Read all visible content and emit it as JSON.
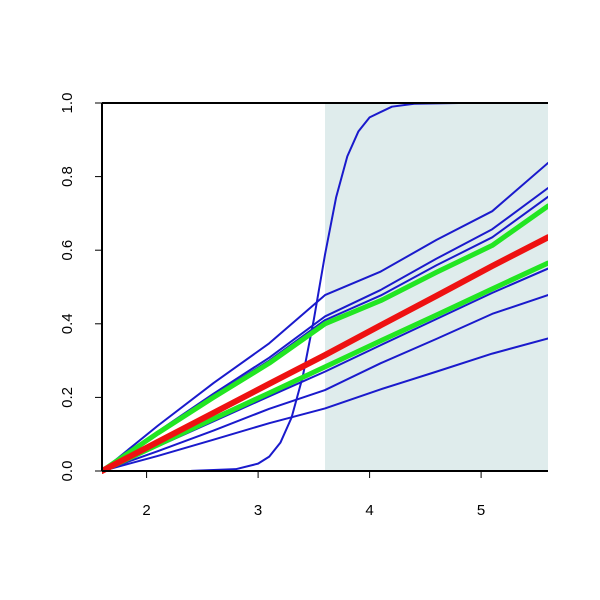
{
  "chart_data": {
    "type": "line",
    "x": [
      1.6,
      2.1,
      2.6,
      3.1,
      3.6,
      4.1,
      4.6,
      5.1,
      5.6
    ],
    "xlim": [
      1.6,
      5.6
    ],
    "xticks": [
      2,
      3,
      4,
      5
    ],
    "ylim": [
      0,
      1
    ],
    "yticks": [
      {
        "value": 0,
        "label": "0.0"
      },
      0.2,
      0.4,
      0.6,
      0.8,
      {
        "value": 1,
        "label": "1.0"
      }
    ],
    "shaded_xrange": [
      3.6,
      5.6
    ],
    "shade_color": "#dfecec",
    "series": [
      {
        "color": "#1a1acc",
        "values": [
          0,
          0.123,
          0.239,
          0.347,
          0.478,
          0.542,
          0.628,
          0.706,
          0.837
        ]
      },
      {
        "color": "#1a1acc",
        "values": [
          0,
          0.107,
          0.21,
          0.308,
          0.42,
          0.492,
          0.577,
          0.657,
          0.769
        ]
      },
      {
        "color": "#1a1acc",
        "values": [
          0,
          0.105,
          0.205,
          0.3,
          0.41,
          0.477,
          0.559,
          0.635,
          0.745
        ]
      },
      {
        "color": "#1a1acc",
        "values": [
          0,
          0.067,
          0.135,
          0.203,
          0.27,
          0.342,
          0.413,
          0.484,
          0.55
        ]
      },
      {
        "color": "#1a1acc",
        "values": [
          0,
          0.054,
          0.11,
          0.169,
          0.22,
          0.293,
          0.359,
          0.427,
          0.478
        ]
      },
      {
        "color": "#1a1acc",
        "values": [
          0,
          0.041,
          0.085,
          0.13,
          0.17,
          0.222,
          0.27,
          0.319,
          0.36
        ]
      },
      {
        "color": "#1a1acc",
        "x": [
          1.6,
          2.0,
          2.4,
          2.8,
          3.0,
          3.1,
          3.2,
          3.3,
          3.4,
          3.5,
          3.6,
          3.7,
          3.8,
          3.9,
          4.0,
          4.2,
          4.4,
          4.8,
          5.2,
          5.6
        ],
        "values": [
          0,
          0,
          0.0003,
          0.005,
          0.02,
          0.039,
          0.077,
          0.145,
          0.256,
          0.412,
          0.588,
          0.744,
          0.855,
          0.923,
          0.961,
          0.99,
          0.998,
          1,
          1,
          1
        ]
      },
      {
        "color": "#22e622",
        "width": 5,
        "values": [
          0,
          0.103,
          0.2,
          0.293,
          0.4,
          0.463,
          0.54,
          0.613,
          0.72
        ]
      },
      {
        "color": "#22e622",
        "width": 5,
        "values": [
          0,
          0.071,
          0.142,
          0.212,
          0.283,
          0.354,
          0.424,
          0.495,
          0.565
        ]
      },
      {
        "color": "#ee1111",
        "width": 6,
        "values": [
          0,
          0.079,
          0.158,
          0.237,
          0.315,
          0.396,
          0.476,
          0.557,
          0.635
        ]
      }
    ]
  }
}
